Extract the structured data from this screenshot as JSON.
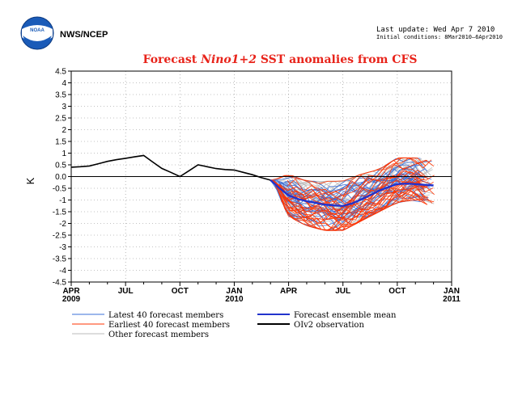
{
  "header": {
    "agency": "NWS/NCEP",
    "update": "Last update: Wed Apr 7 2010",
    "initial": "Initial conditions: 8Mar2010–6Apr2010"
  },
  "logo": {
    "icon": "noaa-logo-icon",
    "text": "NOAA"
  },
  "colors": {
    "title": "#e8231a",
    "latest": "#3a6fd8",
    "earliest": "#ff3300",
    "other": "#bbbbbb",
    "mean": "#2233cc",
    "obs": "#000000"
  },
  "chart_data": {
    "type": "line",
    "title_prefix": "Forecast ",
    "title_italic": "Nino1+2",
    "title_suffix": " SST anomalies from CFS",
    "ylabel": "K",
    "ylim": [
      -4.5,
      4.5
    ],
    "yticks": [
      "4.5",
      "4",
      "3.5",
      "3",
      "2.5",
      "2",
      "1.5",
      "1",
      "0.5",
      "0.0",
      "-0.5",
      "-1",
      "-1.5",
      "-2",
      "-2.5",
      "-3",
      "-3.5",
      "-4",
      "-4.5"
    ],
    "xlim_months": [
      0,
      21
    ],
    "xticks": [
      {
        "m": 0,
        "label": "APR",
        "year": "2009"
      },
      {
        "m": 3,
        "label": "JUL",
        "year": ""
      },
      {
        "m": 6,
        "label": "OCT",
        "year": ""
      },
      {
        "m": 9,
        "label": "JAN",
        "year": "2010"
      },
      {
        "m": 12,
        "label": "APR",
        "year": ""
      },
      {
        "m": 15,
        "label": "JUL",
        "year": ""
      },
      {
        "m": 18,
        "label": "OCT",
        "year": ""
      },
      {
        "m": 21,
        "label": "JAN",
        "year": "2011"
      }
    ],
    "grid": true,
    "zero_line": true,
    "observation": {
      "name": "OIv2 observation",
      "x": [
        0,
        0.5,
        1,
        1.5,
        2,
        2.5,
        3,
        3.5,
        4,
        4.5,
        5,
        5.5,
        6,
        6.5,
        7,
        7.5,
        8,
        8.5,
        9,
        9.5,
        10,
        10.5,
        11
      ],
      "y": [
        0.4,
        0.42,
        0.45,
        0.55,
        0.65,
        0.72,
        0.78,
        0.84,
        0.9,
        0.62,
        0.35,
        0.18,
        0.0,
        0.25,
        0.5,
        0.42,
        0.34,
        0.3,
        0.28,
        0.18,
        0.08,
        -0.05,
        -0.15
      ]
    },
    "ensemble_mean": {
      "name": "Forecast ensemble mean",
      "x": [
        11,
        11.5,
        12,
        12.5,
        13,
        13.5,
        14,
        14.5,
        15,
        15.5,
        16,
        16.5,
        17,
        17.5,
        18,
        18.5,
        19,
        19.5,
        20
      ],
      "y": [
        -0.15,
        -0.5,
        -0.8,
        -0.95,
        -1.05,
        -1.12,
        -1.2,
        -1.23,
        -1.25,
        -1.15,
        -0.98,
        -0.8,
        -0.6,
        -0.45,
        -0.32,
        -0.3,
        -0.32,
        -0.35,
        -0.38
      ]
    },
    "ensemble_spread": {
      "x": [
        11,
        12,
        13,
        14,
        15,
        16,
        17,
        18,
        19,
        20
      ],
      "low": [
        -0.15,
        -1.7,
        -2.1,
        -2.3,
        -2.3,
        -1.9,
        -1.5,
        -1.1,
        -1.0,
        -1.3
      ],
      "high": [
        -0.15,
        0.1,
        -0.2,
        -0.2,
        -0.2,
        0.1,
        0.3,
        0.8,
        0.8,
        0.7
      ]
    },
    "legend": [
      {
        "key": "latest",
        "label": "Latest 40 forecast members"
      },
      {
        "key": "earliest",
        "label": "Earliest 40 forecast members"
      },
      {
        "key": "other",
        "label": "Other forecast members"
      },
      {
        "key": "mean",
        "label": "Forecast ensemble mean"
      },
      {
        "key": "obs",
        "label": "OIv2 observation"
      }
    ]
  }
}
